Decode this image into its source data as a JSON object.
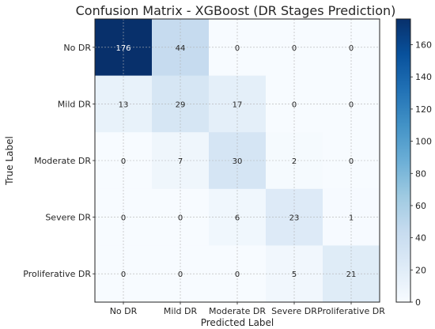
{
  "chart_data": {
    "type": "heatmap",
    "title": "Confusion Matrix - XGBoost (DR Stages Prediction)",
    "xlabel": "Predicted Label",
    "ylabel": "True Label",
    "x_categories": [
      "No DR",
      "Mild DR",
      "Moderate DR",
      "Severe DR",
      "Proliferative DR"
    ],
    "y_categories": [
      "No DR",
      "Mild DR",
      "Moderate DR",
      "Severe DR",
      "Proliferative DR"
    ],
    "values": [
      [
        176,
        44,
        0,
        0,
        0
      ],
      [
        13,
        29,
        17,
        0,
        0
      ],
      [
        0,
        7,
        30,
        2,
        0
      ],
      [
        0,
        0,
        6,
        23,
        1
      ],
      [
        0,
        0,
        0,
        5,
        21
      ]
    ],
    "colormap": "Blues",
    "value_range": [
      0,
      176
    ],
    "colorbar_ticks": [
      0,
      20,
      40,
      60,
      80,
      100,
      120,
      140,
      160
    ],
    "grid": true
  }
}
